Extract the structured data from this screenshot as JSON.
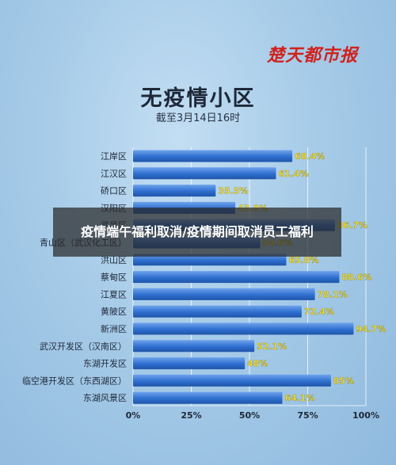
{
  "brand_logo_text": "楚天都市报",
  "overlay_title": "疫情端午福利取消/疫情期间取消员工福利",
  "chart_data": {
    "type": "bar",
    "orientation": "horizontal",
    "title": "无疫情小区",
    "subtitle": "截至3月14日16时",
    "categories": [
      "江岸区",
      "江汉区",
      "硚口区",
      "汉阳区",
      "武昌区",
      "青山区（武汉化工区）",
      "洪山区",
      "蔡甸区",
      "江夏区",
      "黄陂区",
      "新洲区",
      "武汉开发区（汉南区）",
      "东湖开发区",
      "临空港开发区（东西湖区）",
      "东湖风景区"
    ],
    "values": [
      68.4,
      61.4,
      35.5,
      43.9,
      86.7,
      54.6,
      65.8,
      88.6,
      78.1,
      72.4,
      94.7,
      52.1,
      48,
      85,
      64.1
    ],
    "value_labels": [
      "68.4%",
      "61.4%",
      "35.5%",
      "43.9%",
      "86.7%",
      "54.6%",
      "65.8%",
      "88.6%",
      "78.1%",
      "72.4%",
      "94.7%",
      "52.1%",
      "48%",
      "85%",
      "64.1%"
    ],
    "xlim": [
      0,
      100
    ],
    "x_ticks": [
      0,
      25,
      50,
      75,
      100
    ],
    "x_tick_labels": [
      "0%",
      "25%",
      "50%",
      "75%",
      "100%"
    ],
    "grid": true,
    "colors": {
      "bar": "#2f6fd0",
      "bar_highlight": "#6fa3ec",
      "value_label": "#f2e23a",
      "category_label": "#1e2838",
      "grid": "#ffffff",
      "title": "#1e2838",
      "brand": "#d0231e"
    }
  }
}
